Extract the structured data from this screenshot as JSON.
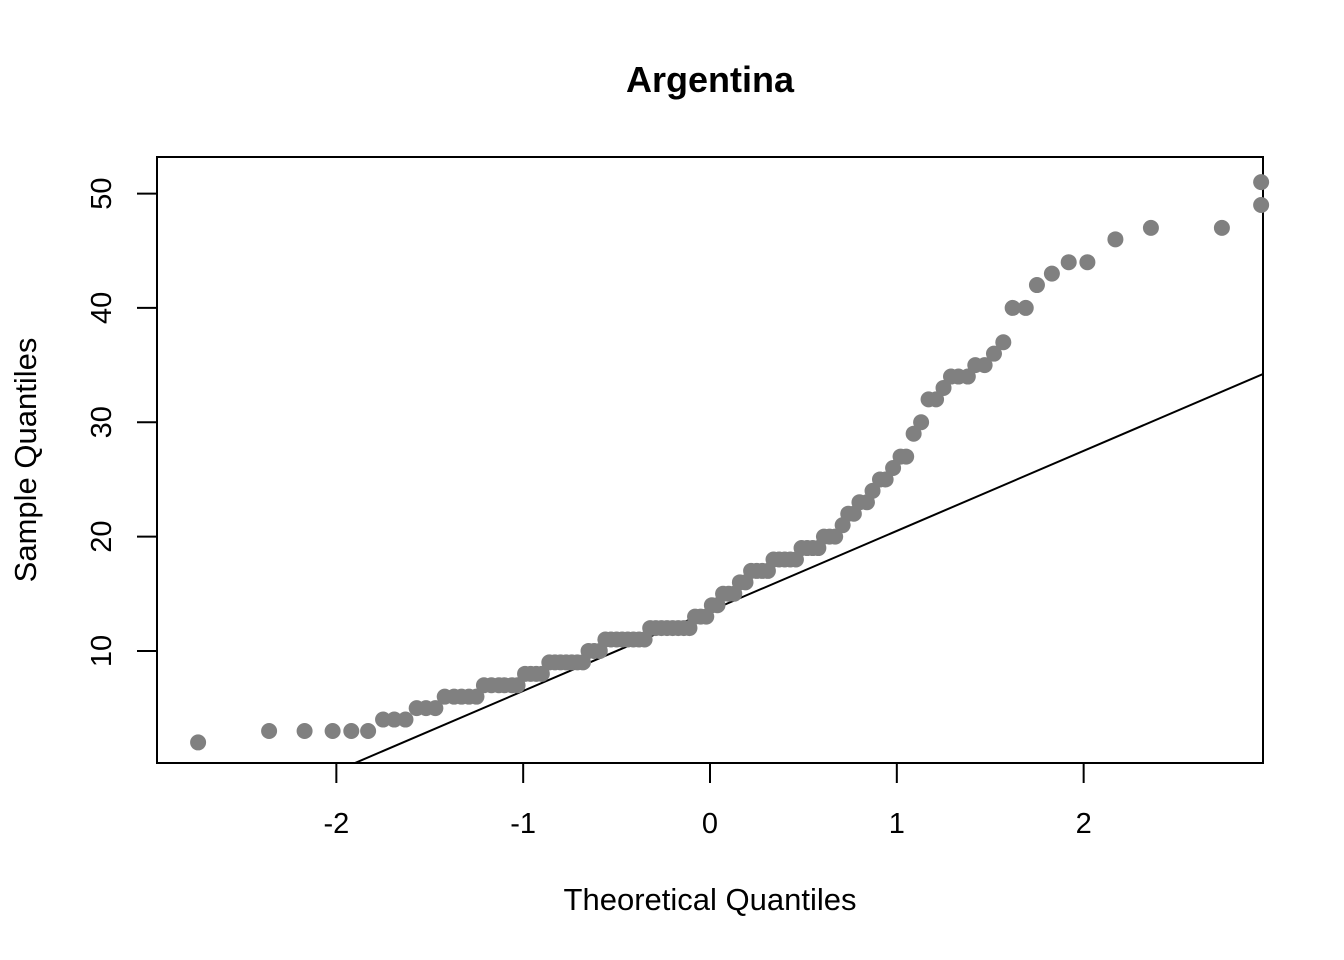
{
  "chart_data": {
    "type": "scatter",
    "title": "Argentina",
    "xlabel": "Theoretical Quantiles",
    "ylabel": "Sample Quantiles",
    "xlim": [
      -2.96,
      2.96
    ],
    "ylim": [
      0.2,
      53.2
    ],
    "x_ticks": [
      -2,
      -1,
      0,
      1,
      2
    ],
    "x_tick_labels": [
      "-2",
      "-1",
      "0",
      "1",
      "2"
    ],
    "y_ticks": [
      10,
      20,
      30,
      40,
      50
    ],
    "y_tick_labels": [
      "10",
      "20",
      "30",
      "40",
      "50"
    ],
    "grid": false,
    "legend": "none",
    "point_color": "#808080",
    "reference_line": {
      "slope": 7.0,
      "intercept": 13.5
    },
    "points": [
      [
        -2.74,
        2
      ],
      [
        -2.36,
        3
      ],
      [
        -2.17,
        3
      ],
      [
        -2.02,
        3
      ],
      [
        -1.92,
        3
      ],
      [
        -1.83,
        3
      ],
      [
        -1.75,
        4
      ],
      [
        -1.69,
        4
      ],
      [
        -1.63,
        4
      ],
      [
        -1.57,
        5
      ],
      [
        -1.52,
        5
      ],
      [
        -1.47,
        5
      ],
      [
        -1.42,
        6
      ],
      [
        -1.37,
        6
      ],
      [
        -1.33,
        6
      ],
      [
        -1.29,
        6
      ],
      [
        -1.25,
        6
      ],
      [
        -1.21,
        7
      ],
      [
        -1.17,
        7
      ],
      [
        -1.13,
        7
      ],
      [
        -1.1,
        7
      ],
      [
        -1.06,
        7
      ],
      [
        -1.03,
        7
      ],
      [
        -0.99,
        8
      ],
      [
        -0.96,
        8
      ],
      [
        -0.93,
        8
      ],
      [
        -0.9,
        8
      ],
      [
        -0.86,
        9
      ],
      [
        -0.83,
        9
      ],
      [
        -0.8,
        9
      ],
      [
        -0.77,
        9
      ],
      [
        -0.74,
        9
      ],
      [
        -0.71,
        9
      ],
      [
        -0.68,
        9
      ],
      [
        -0.65,
        10
      ],
      [
        -0.62,
        10
      ],
      [
        -0.59,
        10
      ],
      [
        -0.56,
        11
      ],
      [
        -0.53,
        11
      ],
      [
        -0.5,
        11
      ],
      [
        -0.47,
        11
      ],
      [
        -0.44,
        11
      ],
      [
        -0.41,
        11
      ],
      [
        -0.38,
        11
      ],
      [
        -0.35,
        11
      ],
      [
        -0.32,
        12
      ],
      [
        -0.29,
        12
      ],
      [
        -0.26,
        12
      ],
      [
        -0.23,
        12
      ],
      [
        -0.2,
        12
      ],
      [
        -0.17,
        12
      ],
      [
        -0.14,
        12
      ],
      [
        -0.11,
        12
      ],
      [
        -0.08,
        13
      ],
      [
        -0.05,
        13
      ],
      [
        -0.02,
        13
      ],
      [
        0.01,
        14
      ],
      [
        0.04,
        14
      ],
      [
        0.07,
        15
      ],
      [
        0.1,
        15
      ],
      [
        0.13,
        15
      ],
      [
        0.16,
        16
      ],
      [
        0.19,
        16
      ],
      [
        0.22,
        17
      ],
      [
        0.25,
        17
      ],
      [
        0.28,
        17
      ],
      [
        0.31,
        17
      ],
      [
        0.34,
        18
      ],
      [
        0.37,
        18
      ],
      [
        0.4,
        18
      ],
      [
        0.43,
        18
      ],
      [
        0.46,
        18
      ],
      [
        0.49,
        19
      ],
      [
        0.52,
        19
      ],
      [
        0.55,
        19
      ],
      [
        0.58,
        19
      ],
      [
        0.61,
        20
      ],
      [
        0.64,
        20
      ],
      [
        0.67,
        20
      ],
      [
        0.71,
        21
      ],
      [
        0.74,
        22
      ],
      [
        0.77,
        22
      ],
      [
        0.8,
        23
      ],
      [
        0.84,
        23
      ],
      [
        0.87,
        24
      ],
      [
        0.91,
        25
      ],
      [
        0.94,
        25
      ],
      [
        0.98,
        26
      ],
      [
        1.02,
        27
      ],
      [
        1.05,
        27
      ],
      [
        1.09,
        29
      ],
      [
        1.13,
        30
      ],
      [
        1.17,
        32
      ],
      [
        1.21,
        32
      ],
      [
        1.25,
        33
      ],
      [
        1.29,
        34
      ],
      [
        1.33,
        34
      ],
      [
        1.38,
        34
      ],
      [
        1.42,
        35
      ],
      [
        1.47,
        35
      ],
      [
        1.52,
        36
      ],
      [
        1.57,
        37
      ],
      [
        1.62,
        40
      ],
      [
        1.69,
        40
      ],
      [
        1.75,
        42
      ],
      [
        1.83,
        43
      ],
      [
        1.92,
        44
      ],
      [
        2.02,
        44
      ],
      [
        2.17,
        46
      ],
      [
        2.36,
        47
      ],
      [
        2.74,
        47
      ],
      [
        2.95,
        49
      ],
      [
        2.95,
        51
      ]
    ]
  }
}
